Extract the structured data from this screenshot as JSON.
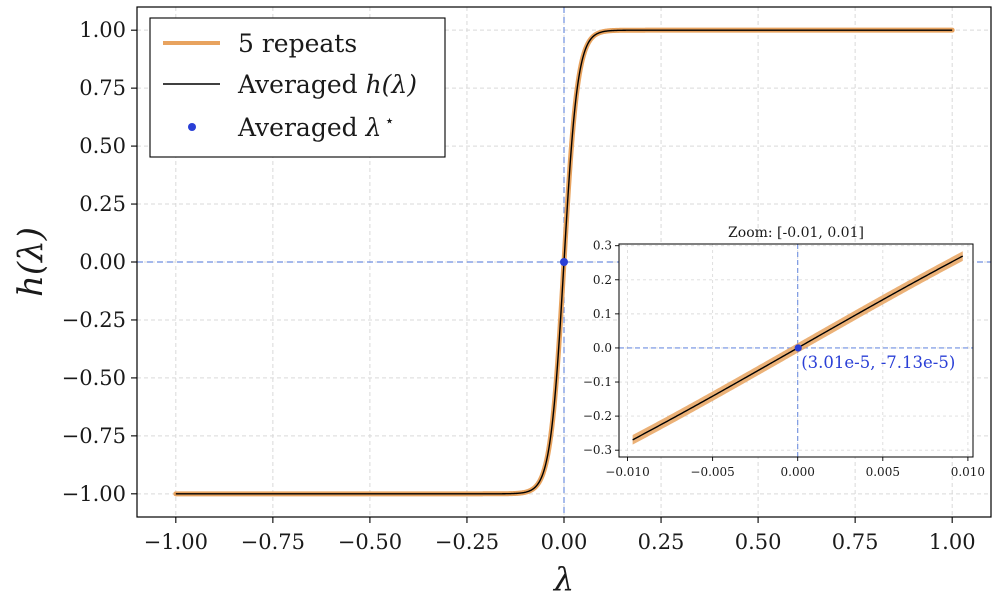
{
  "chart_data": [
    {
      "id": "main",
      "type": "line",
      "title": "",
      "xlabel": "λ",
      "ylabel": "h(λ)",
      "xlim": [
        -1.1,
        1.1
      ],
      "ylim": [
        -1.1,
        1.1
      ],
      "xticks": [
        -1.0,
        -0.75,
        -0.5,
        -0.25,
        0.0,
        0.25,
        0.5,
        0.75,
        1.0
      ],
      "xtick_labels": [
        "−1.00",
        "−0.75",
        "−0.50",
        "−0.25",
        "0.00",
        "0.25",
        "0.50",
        "0.75",
        "1.00"
      ],
      "yticks": [
        -1.0,
        -0.75,
        -0.5,
        -0.25,
        0.0,
        0.25,
        0.5,
        0.75,
        1.0
      ],
      "ytick_labels": [
        "−1.00",
        "−0.75",
        "−0.50",
        "−0.25",
        "0.00",
        "0.25",
        "0.50",
        "0.75",
        "1.00"
      ],
      "grid": true,
      "legend_position": "top-left",
      "curve": {
        "formula": "tanh(k*x)",
        "k": 28.5,
        "x_range": [
          -1.0,
          1.0
        ]
      },
      "series": [
        {
          "name": "5 repeats",
          "color": "#e8a35f",
          "role": "band"
        },
        {
          "name": "Averaged h(λ)",
          "color": "#000000",
          "role": "line"
        },
        {
          "name": "Averaged λ*",
          "color": "#2a3fd6",
          "role": "point",
          "x": 0.0,
          "y": 0.0
        }
      ],
      "reference_lines": {
        "x": 0.0,
        "y": 0.0,
        "color": "#6f8fe0"
      },
      "legend": {
        "items": [
          {
            "prefix": "5 repeats",
            "math": ""
          },
          {
            "prefix": "Averaged ",
            "math": "h(λ)"
          },
          {
            "prefix": "Averaged ",
            "math": "λ",
            "sup": "⋆"
          }
        ]
      }
    },
    {
      "id": "inset",
      "type": "line",
      "title": "Zoom: [-0.01, 0.01]",
      "xlim": [
        -0.0105,
        0.0103
      ],
      "ylim": [
        -0.32,
        0.305
      ],
      "xticks": [
        -0.01,
        -0.005,
        0.0,
        0.005,
        0.01
      ],
      "xtick_labels": [
        "−0.010",
        "−0.005",
        "0.000",
        "0.005",
        "0.010"
      ],
      "yticks": [
        -0.3,
        -0.2,
        -0.1,
        0.0,
        0.1,
        0.2,
        0.3
      ],
      "ytick_labels": [
        "−0.3",
        "−0.2",
        "−0.1",
        "0.0",
        "0.1",
        "0.2",
        "0.3"
      ],
      "grid": true,
      "curve": {
        "formula": "tanh(k*x)",
        "k": 28.5,
        "x_range": [
          -0.0097,
          0.0097
        ]
      },
      "band_halfwidth": 0.014,
      "point": {
        "x": 3.01e-05,
        "y": -7.13e-05
      },
      "annotation": "(3.01e-5, -7.13e-5)"
    }
  ]
}
